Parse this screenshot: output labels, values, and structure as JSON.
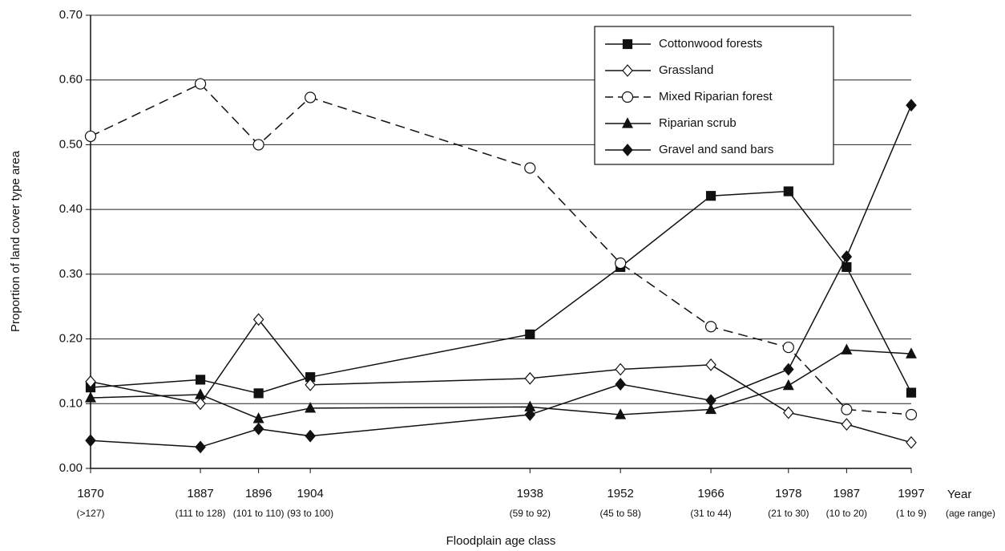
{
  "chart_data": {
    "type": "line",
    "y_label": "Proportion of land cover type area",
    "x_label": "Floodplain age class",
    "x": [
      1870,
      1887,
      1896,
      1904,
      1938,
      1952,
      1966,
      1978,
      1987,
      1997
    ],
    "xlim": [
      1870,
      1997
    ],
    "xticks": [
      1870,
      1887,
      1896,
      1904,
      1938,
      1952,
      1966,
      1978,
      1987,
      1997
    ],
    "xtick_header": "Year",
    "xtick_subheader": "(age range)",
    "xtick_sublabels": [
      "(>127)",
      "(111 to 128)",
      "(101 to 110)",
      "(93 to 100)",
      "(59 to 92)",
      "(45 to 58)",
      "(31 to 44)",
      "(21 to 30)",
      "(10 to 20)",
      "(1 to 9)"
    ],
    "ylim": [
      0,
      0.7
    ],
    "yticks": [
      {
        "value": 0,
        "label": "0.00"
      },
      {
        "value": 0.1,
        "label": "0.10"
      },
      {
        "value": 0.2,
        "label": "0.20"
      },
      {
        "value": 0.3,
        "label": "0.30"
      },
      {
        "value": 0.4,
        "label": "0.40"
      },
      {
        "value": 0.5,
        "label": "0.50"
      },
      {
        "value": 0.6,
        "label": "0.60"
      },
      {
        "value": 0.7,
        "label": "0.70"
      }
    ],
    "grid": true,
    "legend": "top-right",
    "series": [
      {
        "name": "Cottonwood forests",
        "color": "#111111",
        "marker": "square",
        "dash": false,
        "values": [
          0.125,
          0.137,
          0.116,
          0.141,
          0.207,
          0.311,
          0.421,
          0.428,
          0.311,
          0.117
        ]
      },
      {
        "name": "Grassland",
        "color": "#111111",
        "marker": "diamond-open",
        "dash": false,
        "values": [
          0.134,
          0.1,
          0.23,
          0.129,
          0.139,
          0.153,
          0.16,
          0.086,
          0.068,
          0.04
        ]
      },
      {
        "name": "Mixed Riparian forest",
        "color": "#111111",
        "marker": "circle-open",
        "dash": true,
        "values": [
          0.513,
          0.594,
          0.5,
          0.573,
          0.464,
          0.317,
          0.219,
          0.187,
          0.091,
          0.083
        ]
      },
      {
        "name": "Riparian scrub",
        "color": "#111111",
        "marker": "triangle",
        "dash": false,
        "values": [
          0.109,
          0.114,
          0.077,
          0.093,
          0.095,
          0.083,
          0.091,
          0.128,
          0.183,
          0.177
        ]
      },
      {
        "name": "Gravel and sand bars",
        "color": "#111111",
        "marker": "diamond",
        "dash": false,
        "values": [
          0.043,
          0.033,
          0.061,
          0.05,
          0.083,
          0.13,
          0.105,
          0.153,
          0.327,
          0.561
        ]
      }
    ]
  }
}
